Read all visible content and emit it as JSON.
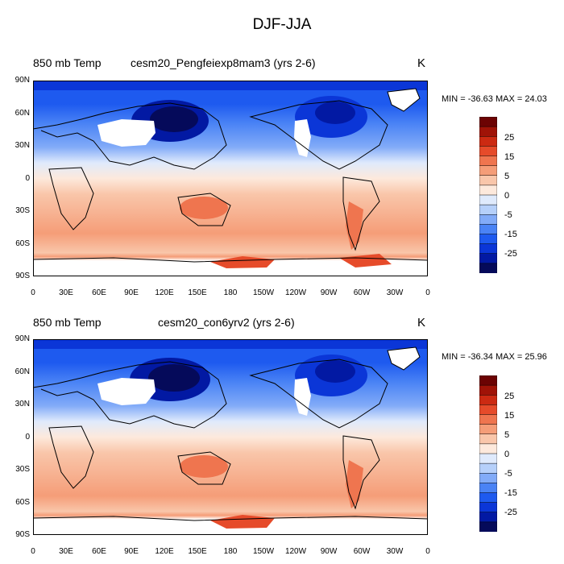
{
  "page": {
    "title": "DJF-JJA"
  },
  "colors": {
    "levels_bg": "#ffffff",
    "land_missing": "#ffffff",
    "coast": "#000000",
    "scale": [
      "#050a5a",
      "#0219a3",
      "#0b36d7",
      "#1e5aef",
      "#4a83f5",
      "#82abf8",
      "#b6d0fa",
      "#dfeafc",
      "#fde9dc",
      "#f9c6aa",
      "#f59d78",
      "#ef754f",
      "#e64b2a",
      "#cc2a12",
      "#a01307",
      "#6c0303"
    ]
  },
  "colorbar": {
    "labels": [
      "25",
      "15",
      "5",
      "0",
      "-5",
      "-15",
      "-25"
    ]
  },
  "axes": {
    "lat_labels": [
      "90N",
      "60N",
      "30N",
      "0",
      "30S",
      "60S",
      "90S"
    ],
    "lon_labels": [
      "0",
      "30E",
      "60E",
      "90E",
      "120E",
      "150E",
      "180",
      "150W",
      "120W",
      "90W",
      "60W",
      "30W",
      "0"
    ]
  },
  "panels": [
    {
      "id": "top",
      "variable": "850 mb Temp",
      "case": "cesm20_Pengfeiexp8mam3 (yrs 2-6)",
      "units": "K",
      "min_label": "MIN =",
      "min": "-36.63",
      "max_label": "MAX =",
      "max": "24.03"
    },
    {
      "id": "bottom",
      "variable": "850 mb Temp",
      "case": "cesm20_con6yrv2 (yrs 2-6)",
      "units": "K",
      "min_label": "MIN =",
      "min": "-36.34",
      "max_label": "MAX =",
      "max": "25.96"
    }
  ]
}
